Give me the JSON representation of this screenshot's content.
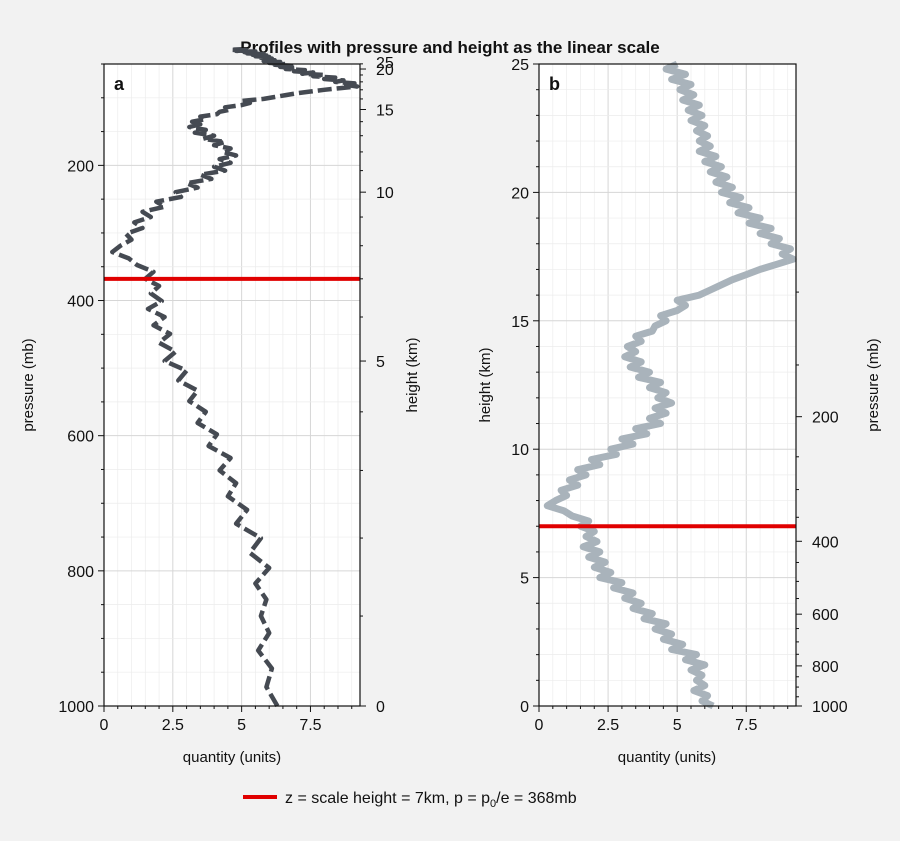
{
  "figure": {
    "title": "Profiles with pressure and height as the linear scale",
    "legend": {
      "label_pre": "z = scale height = 7km, p = p",
      "label_sub": "0",
      "label_post": "/e = 368mb",
      "color": "#e00000",
      "placement": "bottom-center"
    }
  },
  "chart_data": [
    {
      "panel_label": "a",
      "type": "line",
      "line_style": "dashed",
      "line_color": "#454a52",
      "xlabel": "quantity (units)",
      "ylabel": "pressure (mb)",
      "ylabel_right": "height (km)",
      "xlim": [
        0,
        9.3
      ],
      "ylim": [
        1000,
        50
      ],
      "y_scale": "linear (pressure)",
      "x_ticks": [
        "0",
        "2.5",
        "5",
        "7.5"
      ],
      "y_ticks": [
        "200",
        "400",
        "600",
        "800",
        "1000"
      ],
      "right_ticks": [
        "0",
        "5",
        "10",
        "15",
        "20",
        "25"
      ],
      "grid": true,
      "hline": {
        "value": 368,
        "color": "#e00000"
      },
      "points": [
        [
          6.3,
          0
        ],
        [
          5.9,
          0.2
        ],
        [
          6.1,
          0.4
        ],
        [
          5.6,
          0.6
        ],
        [
          6.0,
          0.8
        ],
        [
          5.7,
          1.0
        ],
        [
          5.9,
          1.2
        ],
        [
          5.5,
          1.4
        ],
        [
          6.0,
          1.6
        ],
        [
          5.3,
          1.8
        ],
        [
          5.7,
          2.0
        ],
        [
          4.8,
          2.2
        ],
        [
          5.2,
          2.4
        ],
        [
          4.5,
          2.6
        ],
        [
          4.8,
          2.8
        ],
        [
          4.2,
          3.0
        ],
        [
          4.6,
          3.2
        ],
        [
          3.8,
          3.4
        ],
        [
          4.1,
          3.6
        ],
        [
          3.4,
          3.8
        ],
        [
          3.7,
          4.0
        ],
        [
          3.1,
          4.2
        ],
        [
          3.4,
          4.4
        ],
        [
          2.7,
          4.6
        ],
        [
          3.0,
          4.8
        ],
        [
          2.2,
          5.0
        ],
        [
          2.6,
          5.2
        ],
        [
          2.0,
          5.4
        ],
        [
          2.4,
          5.6
        ],
        [
          1.8,
          5.8
        ],
        [
          2.2,
          6.0
        ],
        [
          1.6,
          6.2
        ],
        [
          2.1,
          6.4
        ],
        [
          1.7,
          6.6
        ],
        [
          2.0,
          6.8
        ],
        [
          1.5,
          7.0
        ],
        [
          1.8,
          7.2
        ],
        [
          1.2,
          7.4
        ],
        [
          0.9,
          7.6
        ],
        [
          0.3,
          7.8
        ],
        [
          0.6,
          8.0
        ],
        [
          1.0,
          8.2
        ],
        [
          0.8,
          8.4
        ],
        [
          1.4,
          8.6
        ],
        [
          1.1,
          8.8
        ],
        [
          1.7,
          9.0
        ],
        [
          1.4,
          9.2
        ],
        [
          2.2,
          9.4
        ],
        [
          1.9,
          9.6
        ],
        [
          2.8,
          9.8
        ],
        [
          2.6,
          10.0
        ],
        [
          3.4,
          10.2
        ],
        [
          3.0,
          10.4
        ],
        [
          3.9,
          10.6
        ],
        [
          3.5,
          10.8
        ],
        [
          4.4,
          11.0
        ],
        [
          4.0,
          11.2
        ],
        [
          4.6,
          11.4
        ],
        [
          4.2,
          11.6
        ],
        [
          4.8,
          11.8
        ],
        [
          4.3,
          12.0
        ],
        [
          4.6,
          12.2
        ],
        [
          4.0,
          12.4
        ],
        [
          4.4,
          12.6
        ],
        [
          3.6,
          12.8
        ],
        [
          4.0,
          13.0
        ],
        [
          3.3,
          13.2
        ],
        [
          3.7,
          13.4
        ],
        [
          3.1,
          13.6
        ],
        [
          3.5,
          13.8
        ],
        [
          3.2,
          14.0
        ],
        [
          3.7,
          14.2
        ],
        [
          3.5,
          14.4
        ],
        [
          4.1,
          14.6
        ],
        [
          4.2,
          14.8
        ],
        [
          4.6,
          15.0
        ],
        [
          4.4,
          15.2
        ],
        [
          5.0,
          15.4
        ],
        [
          5.3,
          15.6
        ],
        [
          5.0,
          15.8
        ],
        [
          5.8,
          16.0
        ],
        [
          6.2,
          16.2
        ],
        [
          6.6,
          16.4
        ],
        [
          7.0,
          16.6
        ],
        [
          7.5,
          16.8
        ],
        [
          8.0,
          17.0
        ],
        [
          8.6,
          17.2
        ],
        [
          9.2,
          17.4
        ],
        [
          8.8,
          17.6
        ],
        [
          9.1,
          17.8
        ],
        [
          8.4,
          18.0
        ],
        [
          8.7,
          18.2
        ],
        [
          8.0,
          18.4
        ],
        [
          8.4,
          18.6
        ],
        [
          7.6,
          18.8
        ],
        [
          8.0,
          19.0
        ],
        [
          7.2,
          19.2
        ],
        [
          7.6,
          19.4
        ],
        [
          6.9,
          19.6
        ],
        [
          7.3,
          19.8
        ],
        [
          6.6,
          20.0
        ],
        [
          7.0,
          20.2
        ],
        [
          6.4,
          20.4
        ],
        [
          6.8,
          20.6
        ],
        [
          6.2,
          20.8
        ],
        [
          6.6,
          21.0
        ],
        [
          6.0,
          21.2
        ],
        [
          6.4,
          21.4
        ],
        [
          5.8,
          21.6
        ],
        [
          6.2,
          21.8
        ],
        [
          5.8,
          22.0
        ],
        [
          6.1,
          22.2
        ],
        [
          5.7,
          22.4
        ],
        [
          6.0,
          22.6
        ],
        [
          5.5,
          22.8
        ],
        [
          5.9,
          23.0
        ],
        [
          5.4,
          23.2
        ],
        [
          5.8,
          23.4
        ],
        [
          5.2,
          23.6
        ],
        [
          5.6,
          23.8
        ],
        [
          5.1,
          24.0
        ],
        [
          5.5,
          24.2
        ],
        [
          4.8,
          24.4
        ],
        [
          5.3,
          24.6
        ],
        [
          4.6,
          24.8
        ],
        [
          5.0,
          25.0
        ]
      ]
    },
    {
      "panel_label": "b",
      "type": "line",
      "line_style": "solid",
      "line_color": "#a9b3bb",
      "xlabel": "quantity (units)",
      "ylabel": "height (km)",
      "ylabel_right": "pressure (mb)",
      "xlim": [
        0,
        9.3
      ],
      "ylim": [
        0,
        25
      ],
      "y_scale": "linear (height)",
      "x_ticks": [
        "0",
        "2.5",
        "5",
        "7.5"
      ],
      "y_ticks": [
        "0",
        "5",
        "10",
        "15",
        "20",
        "25"
      ],
      "right_ticks": [
        "200",
        "400",
        "600",
        "800",
        "1000"
      ],
      "grid": true,
      "hline": {
        "value": 7,
        "color": "#e00000"
      },
      "points": [
        [
          6.3,
          0
        ],
        [
          5.9,
          0.2
        ],
        [
          6.1,
          0.4
        ],
        [
          5.6,
          0.6
        ],
        [
          6.0,
          0.8
        ],
        [
          5.7,
          1.0
        ],
        [
          5.9,
          1.2
        ],
        [
          5.5,
          1.4
        ],
        [
          6.0,
          1.6
        ],
        [
          5.3,
          1.8
        ],
        [
          5.7,
          2.0
        ],
        [
          4.8,
          2.2
        ],
        [
          5.2,
          2.4
        ],
        [
          4.5,
          2.6
        ],
        [
          4.8,
          2.8
        ],
        [
          4.2,
          3.0
        ],
        [
          4.6,
          3.2
        ],
        [
          3.8,
          3.4
        ],
        [
          4.1,
          3.6
        ],
        [
          3.4,
          3.8
        ],
        [
          3.7,
          4.0
        ],
        [
          3.1,
          4.2
        ],
        [
          3.4,
          4.4
        ],
        [
          2.7,
          4.6
        ],
        [
          3.0,
          4.8
        ],
        [
          2.2,
          5.0
        ],
        [
          2.6,
          5.2
        ],
        [
          2.0,
          5.4
        ],
        [
          2.4,
          5.6
        ],
        [
          1.8,
          5.8
        ],
        [
          2.2,
          6.0
        ],
        [
          1.6,
          6.2
        ],
        [
          2.1,
          6.4
        ],
        [
          1.7,
          6.6
        ],
        [
          2.0,
          6.8
        ],
        [
          1.5,
          7.0
        ],
        [
          1.8,
          7.2
        ],
        [
          1.2,
          7.4
        ],
        [
          0.9,
          7.6
        ],
        [
          0.3,
          7.8
        ],
        [
          0.6,
          8.0
        ],
        [
          1.0,
          8.2
        ],
        [
          0.8,
          8.4
        ],
        [
          1.4,
          8.6
        ],
        [
          1.1,
          8.8
        ],
        [
          1.7,
          9.0
        ],
        [
          1.4,
          9.2
        ],
        [
          2.2,
          9.4
        ],
        [
          1.9,
          9.6
        ],
        [
          2.8,
          9.8
        ],
        [
          2.6,
          10.0
        ],
        [
          3.4,
          10.2
        ],
        [
          3.0,
          10.4
        ],
        [
          3.9,
          10.6
        ],
        [
          3.5,
          10.8
        ],
        [
          4.4,
          11.0
        ],
        [
          4.0,
          11.2
        ],
        [
          4.6,
          11.4
        ],
        [
          4.2,
          11.6
        ],
        [
          4.8,
          11.8
        ],
        [
          4.3,
          12.0
        ],
        [
          4.6,
          12.2
        ],
        [
          4.0,
          12.4
        ],
        [
          4.4,
          12.6
        ],
        [
          3.6,
          12.8
        ],
        [
          4.0,
          13.0
        ],
        [
          3.3,
          13.2
        ],
        [
          3.7,
          13.4
        ],
        [
          3.1,
          13.6
        ],
        [
          3.5,
          13.8
        ],
        [
          3.2,
          14.0
        ],
        [
          3.7,
          14.2
        ],
        [
          3.5,
          14.4
        ],
        [
          4.1,
          14.6
        ],
        [
          4.2,
          14.8
        ],
        [
          4.6,
          15.0
        ],
        [
          4.4,
          15.2
        ],
        [
          5.0,
          15.4
        ],
        [
          5.3,
          15.6
        ],
        [
          5.0,
          15.8
        ],
        [
          5.8,
          16.0
        ],
        [
          6.2,
          16.2
        ],
        [
          6.6,
          16.4
        ],
        [
          7.0,
          16.6
        ],
        [
          7.5,
          16.8
        ],
        [
          8.0,
          17.0
        ],
        [
          8.6,
          17.2
        ],
        [
          9.2,
          17.4
        ],
        [
          8.8,
          17.6
        ],
        [
          9.1,
          17.8
        ],
        [
          8.4,
          18.0
        ],
        [
          8.7,
          18.2
        ],
        [
          8.0,
          18.4
        ],
        [
          8.4,
          18.6
        ],
        [
          7.6,
          18.8
        ],
        [
          8.0,
          19.0
        ],
        [
          7.2,
          19.2
        ],
        [
          7.6,
          19.4
        ],
        [
          6.9,
          19.6
        ],
        [
          7.3,
          19.8
        ],
        [
          6.6,
          20.0
        ],
        [
          7.0,
          20.2
        ],
        [
          6.4,
          20.4
        ],
        [
          6.8,
          20.6
        ],
        [
          6.2,
          20.8
        ],
        [
          6.6,
          21.0
        ],
        [
          6.0,
          21.2
        ],
        [
          6.4,
          21.4
        ],
        [
          5.8,
          21.6
        ],
        [
          6.2,
          21.8
        ],
        [
          5.8,
          22.0
        ],
        [
          6.1,
          22.2
        ],
        [
          5.7,
          22.4
        ],
        [
          6.0,
          22.6
        ],
        [
          5.5,
          22.8
        ],
        [
          5.9,
          23.0
        ],
        [
          5.4,
          23.2
        ],
        [
          5.8,
          23.4
        ],
        [
          5.2,
          23.6
        ],
        [
          5.6,
          23.8
        ],
        [
          5.1,
          24.0
        ],
        [
          5.5,
          24.2
        ],
        [
          4.8,
          24.4
        ],
        [
          5.3,
          24.6
        ],
        [
          4.6,
          24.8
        ],
        [
          5.0,
          25.0
        ]
      ]
    }
  ]
}
